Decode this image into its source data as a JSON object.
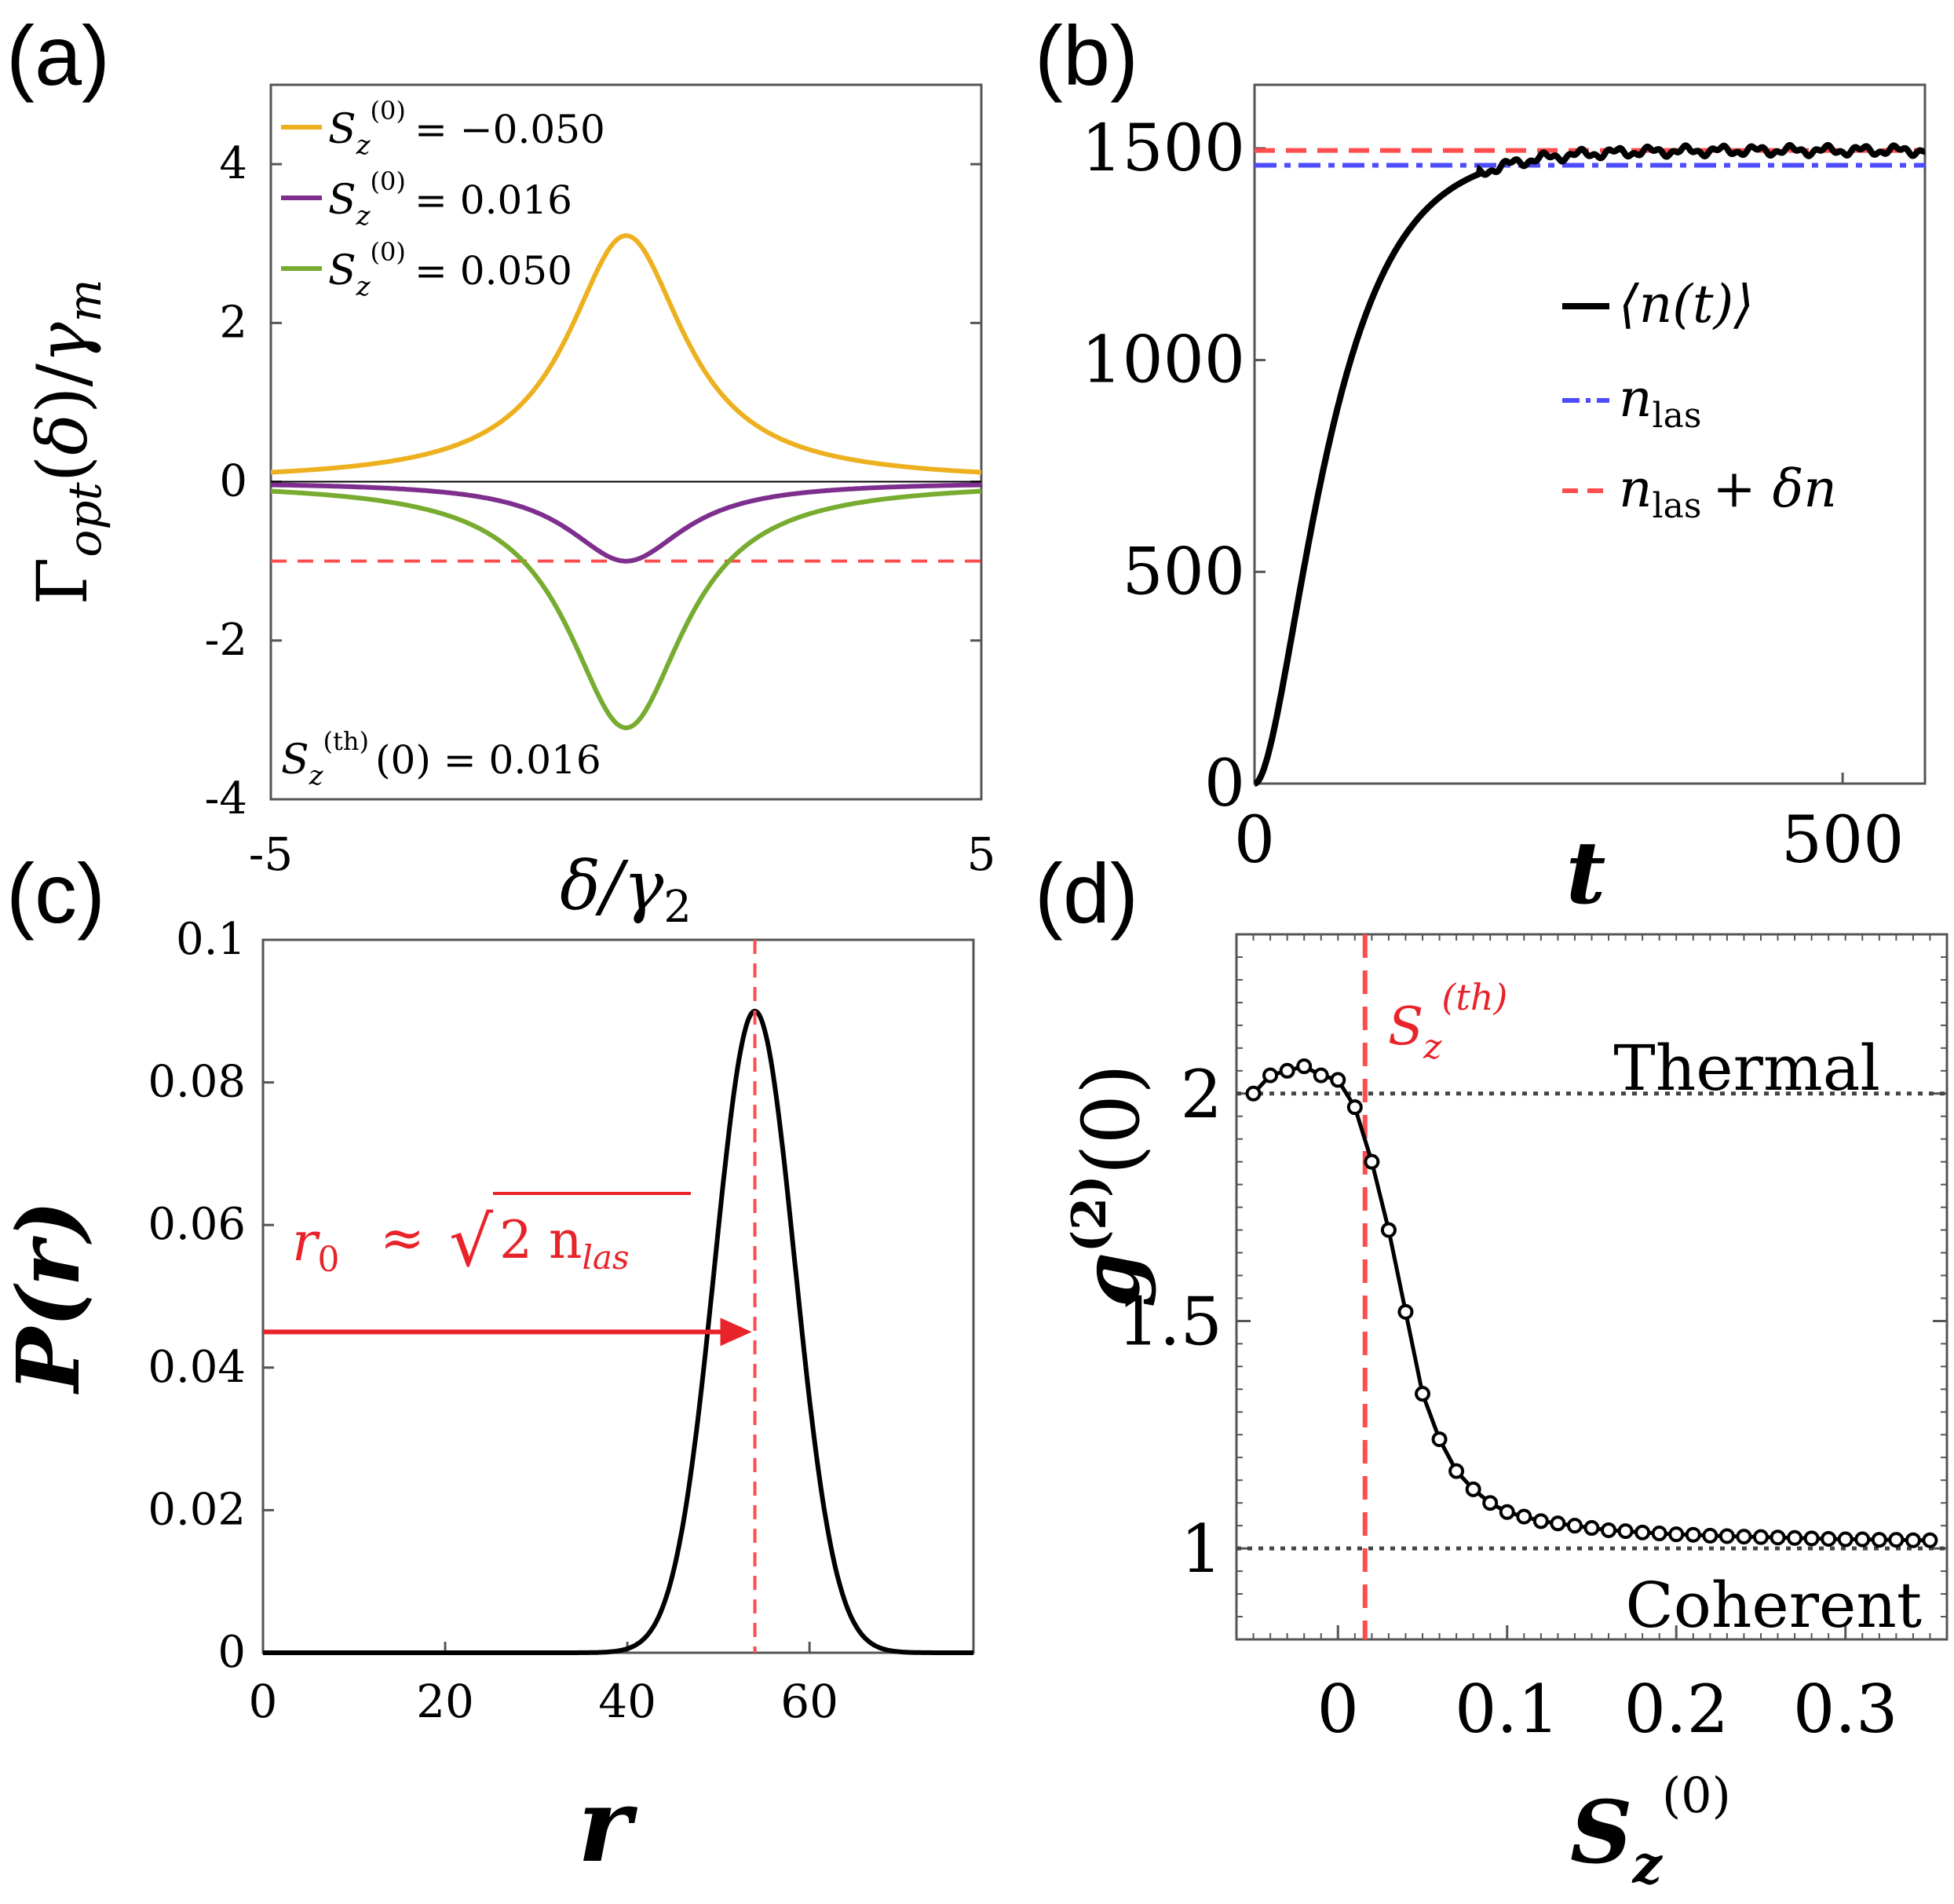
{
  "chart_data": [
    {
      "panel_label": "(a)",
      "type": "line",
      "xlabel": "δ/γ₂",
      "ylabel": "Γopt(δ)/γm",
      "xlim": [
        -5,
        5
      ],
      "ylim": [
        -4,
        5
      ],
      "xticks": [
        "-5",
        "5"
      ],
      "yticks": [
        "4",
        "2",
        "0",
        "-2",
        "-4"
      ],
      "series": [
        {
          "name": "Sz(0) = −0.050",
          "legend_tex": "S_z^{(0)} = −0.050",
          "color": "#EDB120",
          "kind": "lorentzian",
          "amp": 3.1,
          "width": 1.0
        },
        {
          "name": "Sz(0) = 0.016",
          "legend_tex": "S_z^{(0)} = 0.016",
          "color": "#7E2F8E",
          "kind": "lorentzian",
          "amp": -1.0,
          "width": 1.0
        },
        {
          "name": "Sz(0) = 0.050",
          "legend_tex": "S_z^{(0)} = 0.050",
          "color": "#77AC30",
          "kind": "lorentzian",
          "amp": -3.1,
          "width": 1.0
        }
      ],
      "reference_lines": [
        {
          "y": 0,
          "color": "#000000",
          "style": "solid"
        },
        {
          "y": -1,
          "color": "#FF4D4D",
          "style": "dashed"
        }
      ],
      "annotation": "Sz(th)(0) = 0.016"
    },
    {
      "panel_label": "(b)",
      "type": "line",
      "xlabel": "t",
      "ylabel": "",
      "xlim": [
        0,
        570
      ],
      "ylim": [
        0,
        1650
      ],
      "xticks": [
        "0",
        "500"
      ],
      "yticks": [
        "1500",
        "1000",
        "500",
        "0"
      ],
      "n_las": 1460,
      "n_las_plus_delta": 1495,
      "series": [
        {
          "name": "⟨n(t)⟩",
          "color": "#000000",
          "style": "solid"
        },
        {
          "name": "n_las",
          "color": "#4D4DFF",
          "style": "dashdot"
        },
        {
          "name": "n_las + δn",
          "color": "#FF4D4D",
          "style": "dashed"
        }
      ]
    },
    {
      "panel_label": "(c)",
      "type": "line",
      "xlabel": "r",
      "ylabel": "P(r)",
      "xlim": [
        0,
        78
      ],
      "ylim": [
        0,
        0.1
      ],
      "xticks": [
        "0",
        "20",
        "40",
        "60"
      ],
      "yticks": [
        "0.1",
        "0.08",
        "0.06",
        "0.04",
        "0.02",
        "0"
      ],
      "peak_r": 54,
      "peak_p": 0.09,
      "sigma": 4.4,
      "arrow_y": 0.045,
      "annotation": "r0 ≈ √(2 n_las)",
      "color": "#000000",
      "marker_color": "#FF4D4D"
    },
    {
      "panel_label": "(d)",
      "type": "line",
      "xlabel": "Sz(0)",
      "ylabel": "g(2)(0)",
      "xlim": [
        -0.06,
        0.36
      ],
      "ylim": [
        0.8,
        2.35
      ],
      "xticks": [
        "0",
        "0.1",
        "0.2",
        "0.3"
      ],
      "yticks": [
        "2",
        "1.5",
        "1"
      ],
      "x": [
        -0.05,
        -0.04,
        -0.03,
        -0.02,
        -0.01,
        0.0,
        0.01,
        0.02,
        0.03,
        0.04,
        0.05,
        0.06,
        0.07,
        0.08,
        0.09,
        0.1,
        0.11,
        0.12,
        0.13,
        0.14,
        0.15,
        0.16,
        0.17,
        0.18,
        0.19,
        0.2,
        0.21,
        0.22,
        0.23,
        0.24,
        0.25,
        0.26,
        0.27,
        0.28,
        0.29,
        0.3,
        0.31,
        0.32,
        0.33,
        0.34,
        0.35
      ],
      "values": [
        2.0,
        2.04,
        2.05,
        2.06,
        2.04,
        2.03,
        1.97,
        1.85,
        1.7,
        1.52,
        1.34,
        1.24,
        1.17,
        1.13,
        1.1,
        1.08,
        1.07,
        1.06,
        1.055,
        1.05,
        1.045,
        1.04,
        1.038,
        1.035,
        1.033,
        1.031,
        1.03,
        1.028,
        1.027,
        1.026,
        1.025,
        1.024,
        1.023,
        1.022,
        1.021,
        1.02,
        1.02,
        1.019,
        1.019,
        1.018,
        1.018
      ],
      "threshold_x": 0.016,
      "thermal_y": 2,
      "coherent_y": 1,
      "labels": {
        "thermal": "Thermal",
        "coherent": "Coherent",
        "threshold": "Sz(th)"
      }
    }
  ],
  "text": {
    "a_label": "(a)",
    "b_label": "(b)",
    "c_label": "(c)",
    "d_label": "(d)",
    "a_leg1_val": "= −0.050",
    "a_leg2_val": "= 0.016",
    "a_leg3_val": "= 0.050",
    "a_annot_val": "(0) = 0.016",
    "b_leg1": "⟨n(t)⟩",
    "b_leg2": "n",
    "b_leg2_sub": "las",
    "b_leg3": "n",
    "b_leg3_sub": "las",
    "b_leg3_tail": "+ δn",
    "c_annot_lhs": "r",
    "c_annot_sub": "0",
    "c_annot_approx": "≈",
    "c_annot_rad": "2 n",
    "c_annot_rad_sub": "las",
    "d_thermal": "Thermal",
    "d_coherent": "Coherent"
  }
}
